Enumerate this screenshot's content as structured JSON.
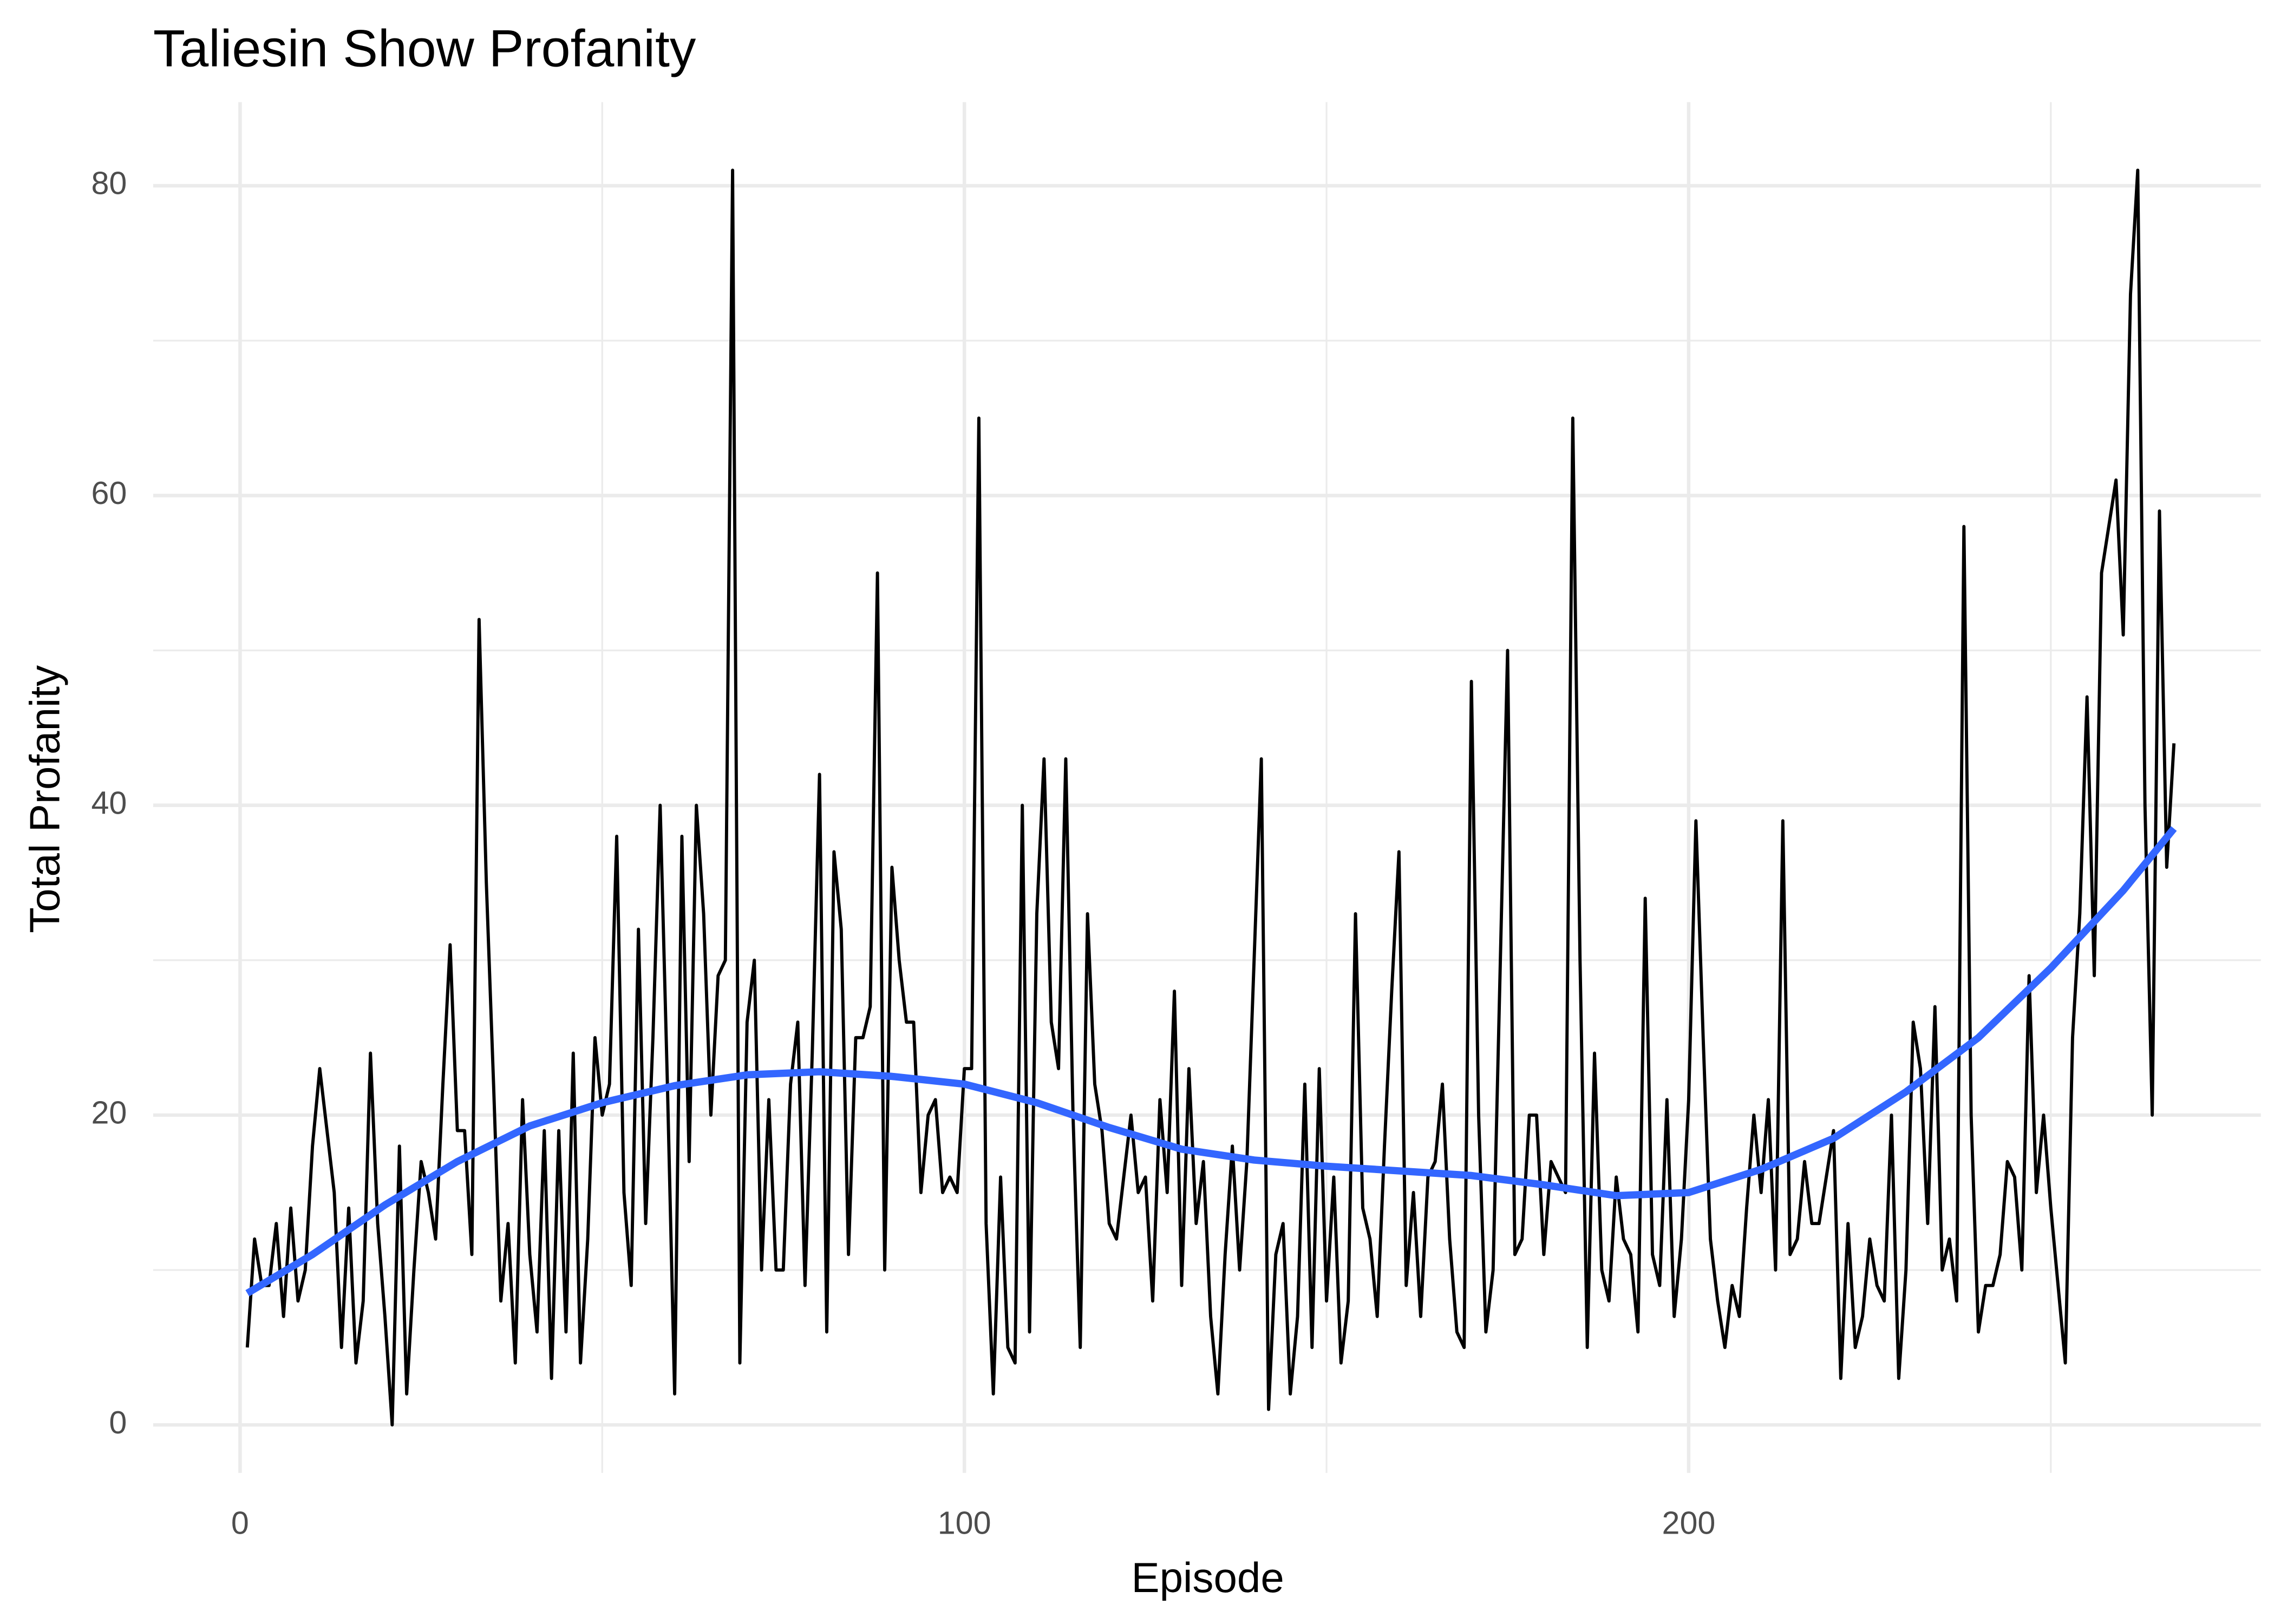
{
  "chart_data": {
    "type": "line",
    "title": "Taliesin Show Profanity",
    "x_label": "Episode",
    "y_label": "Total Profanity",
    "xlim": [
      -12,
      279
    ],
    "ylim": [
      -3.1,
      85.4
    ],
    "xticks": [
      0,
      100,
      200
    ],
    "yticks": [
      0,
      20,
      40,
      60,
      80
    ],
    "x_minor_grid": [
      50,
      150,
      250
    ],
    "y_minor_grid": [
      10,
      30,
      50,
      70
    ],
    "grid": true,
    "series": [
      {
        "color": "#000000",
        "width": 2.2,
        "x": [
          1,
          2,
          3,
          4,
          5,
          6,
          7,
          8,
          9,
          10,
          11,
          12,
          13,
          14,
          15,
          16,
          17,
          18,
          19,
          20,
          21,
          22,
          23,
          24,
          25,
          26,
          27,
          28,
          29,
          30,
          31,
          32,
          33,
          34,
          35,
          36,
          37,
          38,
          39,
          40,
          41,
          42,
          43,
          44,
          45,
          46,
          47,
          48,
          49,
          50,
          51,
          52,
          53,
          54,
          55,
          56,
          57,
          58,
          59,
          60,
          61,
          62,
          63,
          64,
          65,
          66,
          67,
          68,
          69,
          70,
          71,
          72,
          73,
          74,
          75,
          76,
          77,
          78,
          79,
          80,
          81,
          82,
          83,
          84,
          85,
          86,
          87,
          88,
          89,
          90,
          91,
          92,
          93,
          94,
          95,
          96,
          97,
          98,
          99,
          100,
          101,
          102,
          103,
          104,
          105,
          106,
          107,
          108,
          109,
          110,
          111,
          112,
          113,
          114,
          115,
          116,
          117,
          118,
          119,
          120,
          121,
          122,
          123,
          124,
          125,
          126,
          127,
          128,
          129,
          130,
          131,
          132,
          133,
          134,
          135,
          136,
          137,
          138,
          139,
          140,
          141,
          142,
          143,
          144,
          145,
          146,
          147,
          148,
          149,
          150,
          151,
          152,
          153,
          154,
          155,
          156,
          157,
          158,
          159,
          160,
          161,
          162,
          163,
          164,
          165,
          166,
          167,
          168,
          169,
          170,
          171,
          172,
          173,
          174,
          175,
          176,
          177,
          178,
          179,
          180,
          181,
          182,
          183,
          184,
          185,
          186,
          187,
          188,
          189,
          190,
          191,
          192,
          193,
          194,
          195,
          196,
          197,
          198,
          199,
          200,
          201,
          202,
          203,
          204,
          205,
          206,
          207,
          208,
          209,
          210,
          211,
          212,
          213,
          214,
          215,
          216,
          217,
          218,
          219,
          220,
          221,
          222,
          223,
          224,
          225,
          226,
          227,
          228,
          229,
          230,
          231,
          232,
          233,
          234,
          235,
          236,
          237,
          238,
          239,
          240,
          241,
          242,
          243,
          244,
          245,
          246,
          247,
          248,
          249,
          250,
          251,
          252,
          253,
          254,
          255,
          256,
          257,
          258,
          259,
          260,
          261,
          262,
          263,
          264,
          265,
          266,
          267
        ],
        "values": [
          5,
          12,
          9,
          9,
          13,
          7,
          14,
          8,
          10,
          18,
          23,
          19,
          15,
          5,
          14,
          4,
          8,
          24,
          13,
          7,
          0,
          18,
          2,
          10,
          17,
          15,
          12,
          22,
          31,
          19,
          19,
          11,
          52,
          35,
          22,
          8,
          13,
          4,
          21,
          11,
          6,
          19,
          3,
          19,
          6,
          24,
          4,
          12,
          25,
          20,
          22,
          38,
          15,
          9,
          32,
          13,
          25,
          40,
          22,
          2,
          38,
          17,
          40,
          33,
          20,
          29,
          30,
          81,
          4,
          26,
          30,
          10,
          21,
          10,
          10,
          22,
          26,
          9,
          24,
          42,
          6,
          37,
          32,
          11,
          25,
          25,
          27,
          55,
          10,
          36,
          30,
          26,
          26,
          15,
          20,
          21,
          15,
          16,
          15,
          23,
          23,
          65,
          13,
          2,
          16,
          5,
          4,
          40,
          6,
          33,
          43,
          26,
          23,
          43,
          20,
          5,
          33,
          22,
          19,
          13,
          12,
          16,
          20,
          15,
          16,
          8,
          21,
          15,
          28,
          9,
          23,
          13,
          17,
          7,
          2,
          11,
          18,
          10,
          17,
          30,
          43,
          1,
          11,
          13,
          2,
          7,
          22,
          5,
          23,
          8,
          16,
          4,
          8,
          33,
          14,
          12,
          7,
          18,
          28,
          37,
          9,
          15,
          7,
          16,
          17,
          22,
          12,
          6,
          5,
          48,
          20,
          6,
          10,
          30,
          50,
          11,
          12,
          20,
          20,
          11,
          17,
          16,
          15,
          65,
          30,
          5,
          24,
          10,
          8,
          16,
          12,
          11,
          6,
          34,
          11,
          9,
          21,
          7,
          12,
          21,
          39,
          25,
          12,
          8,
          5,
          9,
          7,
          14,
          20,
          15,
          21,
          10,
          39,
          11,
          12,
          17,
          13,
          13,
          16,
          19,
          3,
          13,
          5,
          7,
          12,
          9,
          8,
          20,
          3,
          10,
          26,
          23,
          13,
          27,
          10,
          12,
          8,
          58,
          20,
          6,
          9,
          9,
          11,
          17,
          16,
          10,
          29,
          15,
          20,
          14,
          9,
          4,
          25,
          33,
          47,
          29,
          55,
          58,
          61,
          51,
          73,
          81,
          40,
          20,
          59,
          36,
          44
        ]
      },
      {
        "color": "#3366ff",
        "width": 5,
        "x": [
          1,
          10,
          20,
          30,
          40,
          50,
          60,
          70,
          80,
          90,
          100,
          110,
          120,
          130,
          140,
          150,
          160,
          170,
          180,
          190,
          200,
          210,
          220,
          230,
          240,
          250,
          260,
          267
        ],
        "values": [
          8.5,
          11,
          14.2,
          17,
          19.3,
          20.8,
          21.9,
          22.6,
          22.8,
          22.5,
          22,
          20.8,
          19.2,
          17.8,
          17.1,
          16.7,
          16.4,
          16.1,
          15.5,
          14.8,
          15,
          16.5,
          18.5,
          21.5,
          25,
          29.5,
          34.5,
          38.5
        ]
      }
    ]
  }
}
